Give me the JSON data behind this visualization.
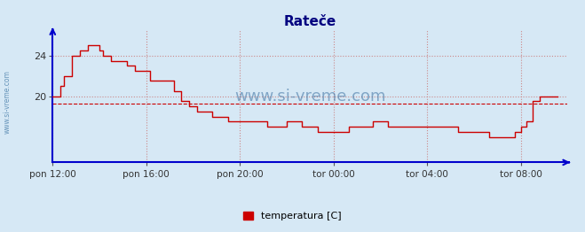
{
  "title": "Rateče",
  "title_color": "#000080",
  "title_fontsize": 11,
  "background_color": "#d6e8f5",
  "plot_bg_color": "#d6e8f5",
  "line_color": "#cc0000",
  "avg_line_color": "#cc0000",
  "avg_line_style": "dashed",
  "avg_value": 19.3,
  "ylim": [
    13.5,
    26.5
  ],
  "yticks": [
    20,
    24
  ],
  "xtick_labels": [
    "pon 12:00",
    "pon 16:00",
    "pon 20:00",
    "tor 00:00",
    "tor 04:00",
    "tor 08:00"
  ],
  "xtick_positions": [
    0,
    240,
    480,
    720,
    960,
    1200
  ],
  "total_minutes": 1320,
  "watermark": "www.si-vreme.com",
  "legend_label": "temperatura [C]",
  "legend_color": "#cc0000",
  "axis_color": "#0000cc",
  "grid_color": "#cc8888",
  "data_steps": [
    [
      0,
      20.0
    ],
    [
      10,
      20.0
    ],
    [
      20,
      21.0
    ],
    [
      30,
      22.0
    ],
    [
      50,
      24.0
    ],
    [
      70,
      24.5
    ],
    [
      90,
      25.0
    ],
    [
      110,
      25.0
    ],
    [
      120,
      24.5
    ],
    [
      130,
      24.0
    ],
    [
      150,
      23.5
    ],
    [
      170,
      23.5
    ],
    [
      190,
      23.0
    ],
    [
      210,
      22.5
    ],
    [
      230,
      22.5
    ],
    [
      250,
      21.5
    ],
    [
      270,
      21.5
    ],
    [
      290,
      21.5
    ],
    [
      310,
      20.5
    ],
    [
      330,
      19.5
    ],
    [
      350,
      19.0
    ],
    [
      370,
      18.5
    ],
    [
      390,
      18.5
    ],
    [
      410,
      18.0
    ],
    [
      430,
      18.0
    ],
    [
      450,
      17.5
    ],
    [
      470,
      17.5
    ],
    [
      490,
      17.5
    ],
    [
      510,
      17.5
    ],
    [
      530,
      17.5
    ],
    [
      550,
      17.0
    ],
    [
      570,
      17.0
    ],
    [
      590,
      17.0
    ],
    [
      600,
      17.5
    ],
    [
      620,
      17.5
    ],
    [
      640,
      17.0
    ],
    [
      660,
      17.0
    ],
    [
      680,
      16.5
    ],
    [
      700,
      16.5
    ],
    [
      720,
      16.5
    ],
    [
      740,
      16.5
    ],
    [
      760,
      17.0
    ],
    [
      780,
      17.0
    ],
    [
      800,
      17.0
    ],
    [
      820,
      17.5
    ],
    [
      840,
      17.5
    ],
    [
      860,
      17.0
    ],
    [
      880,
      17.0
    ],
    [
      900,
      17.0
    ],
    [
      920,
      17.0
    ],
    [
      940,
      17.0
    ],
    [
      960,
      17.0
    ],
    [
      980,
      17.0
    ],
    [
      1000,
      17.0
    ],
    [
      1020,
      17.0
    ],
    [
      1040,
      16.5
    ],
    [
      1060,
      16.5
    ],
    [
      1080,
      16.5
    ],
    [
      1100,
      16.5
    ],
    [
      1120,
      16.0
    ],
    [
      1140,
      16.0
    ],
    [
      1160,
      16.0
    ],
    [
      1185,
      16.5
    ],
    [
      1200,
      17.0
    ],
    [
      1215,
      17.5
    ],
    [
      1230,
      19.5
    ],
    [
      1250,
      20.0
    ],
    [
      1295,
      20.0
    ]
  ]
}
